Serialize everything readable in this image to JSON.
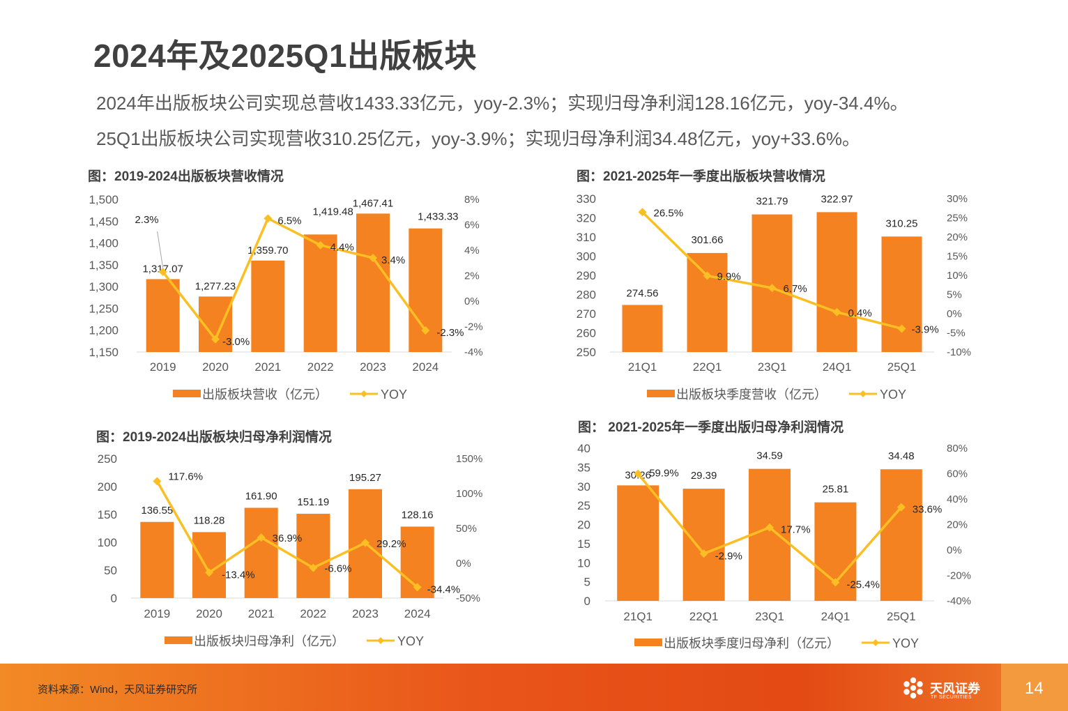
{
  "title": "2024年及2025Q1出版板块",
  "subtitle_1": "2024年出版板块公司实现总营收1433.33亿元，yoy-2.3%；实现归母净利润128.16亿元，yoy-34.4%。",
  "subtitle_2": "25Q1出版板块公司实现营收310.25亿元，yoy-3.9%；实现归母净利润34.48亿元，yoy+33.6%。",
  "colors": {
    "bar": "#f58220",
    "line": "#fbbf24",
    "axis_text": "#595959",
    "footer": "#e9551a"
  },
  "footer": {
    "source": "资料来源：Wind，天风证券研究所",
    "logo_cn": "天风证券",
    "logo_en": "TF SECURITIES",
    "page": "14"
  },
  "chart_data": [
    {
      "id": "c1",
      "type": "bar",
      "title": "图：2019-2024出版板块营收情况",
      "categories": [
        "2019",
        "2020",
        "2021",
        "2022",
        "2023",
        "2024"
      ],
      "series": [
        {
          "name": "出版板块营收（亿元）",
          "type": "bar",
          "values": [
            1317.07,
            1277.23,
            1359.7,
            1419.48,
            1467.41,
            1433.33
          ],
          "labels": [
            "1,317.07",
            "1,277.23",
            "1,359.70",
            "1,419.48",
            "1,467.41",
            "1,433.33"
          ]
        },
        {
          "name": "YOY",
          "type": "line",
          "axis": "right",
          "values": [
            2.3,
            -3.0,
            6.5,
            4.4,
            3.4,
            -2.3
          ],
          "labels": [
            "2.3%",
            "-3.0%",
            "6.5%",
            "4.4%",
            "3.4%",
            "-2.3%"
          ]
        }
      ],
      "ylim": [
        1150,
        1500
      ],
      "yticks": [
        "1,150",
        "1,200",
        "1,250",
        "1,300",
        "1,350",
        "1,400",
        "1,450",
        "1,500"
      ],
      "y2lim": [
        -4,
        8
      ],
      "y2ticks": [
        "-4%",
        "-2%",
        "0%",
        "2%",
        "4%",
        "6%",
        "8%"
      ],
      "legend": [
        "出版板块营收（亿元）",
        "YOY"
      ],
      "legend_position": "bottom"
    },
    {
      "id": "c2",
      "type": "bar",
      "title": "图：2021-2025年一季度出版板块营收情况",
      "categories": [
        "21Q1",
        "22Q1",
        "23Q1",
        "24Q1",
        "25Q1"
      ],
      "series": [
        {
          "name": "出版板块季度营收（亿元）",
          "type": "bar",
          "values": [
            274.56,
            301.66,
            321.79,
            322.97,
            310.25
          ],
          "labels": [
            "274.56",
            "301.66",
            "321.79",
            "322.97",
            "310.25"
          ]
        },
        {
          "name": "YOY",
          "type": "line",
          "axis": "right",
          "values": [
            26.5,
            9.9,
            6.7,
            0.4,
            -3.9
          ],
          "labels": [
            "26.5%",
            "9.9%",
            "6.7%",
            "0.4%",
            "-3.9%"
          ]
        }
      ],
      "ylim": [
        250,
        330
      ],
      "yticks": [
        "250",
        "260",
        "270",
        "280",
        "290",
        "300",
        "310",
        "320",
        "330"
      ],
      "y2lim": [
        -10,
        30
      ],
      "y2ticks": [
        "-10%",
        "-5%",
        "0%",
        "5%",
        "10%",
        "15%",
        "20%",
        "25%",
        "30%"
      ],
      "legend": [
        "出版板块季度营收（亿元）",
        "YOY"
      ],
      "legend_position": "bottom"
    },
    {
      "id": "c3",
      "type": "bar",
      "title": "图：2019-2024出版板块归母净利润情况",
      "categories": [
        "2019",
        "2020",
        "2021",
        "2022",
        "2023",
        "2024"
      ],
      "series": [
        {
          "name": "出版板块归母净利（亿元）",
          "type": "bar",
          "values": [
            136.55,
            118.28,
            161.9,
            151.19,
            195.27,
            128.16
          ],
          "labels": [
            "136.55",
            "118.28",
            "161.90",
            "151.19",
            "195.27",
            "128.16"
          ]
        },
        {
          "name": "YOY",
          "type": "line",
          "axis": "right",
          "values": [
            117.6,
            -13.4,
            36.9,
            -6.6,
            29.2,
            -34.4
          ],
          "labels": [
            "117.6%",
            "-13.4%",
            "36.9%",
            "-6.6%",
            "29.2%",
            "-34.4%"
          ]
        }
      ],
      "ylim": [
        0,
        250
      ],
      "yticks": [
        "0",
        "50",
        "100",
        "150",
        "200",
        "250"
      ],
      "y2lim": [
        -50,
        150
      ],
      "y2ticks": [
        "-50%",
        "0%",
        "50%",
        "100%",
        "150%"
      ],
      "legend": [
        "出版板块归母净利（亿元）",
        "YOY"
      ],
      "legend_position": "bottom"
    },
    {
      "id": "c4",
      "type": "bar",
      "title": "图： 2021-2025年一季度出版归母净利润情况",
      "categories": [
        "21Q1",
        "22Q1",
        "23Q1",
        "24Q1",
        "25Q1"
      ],
      "series": [
        {
          "name": "出版板块季度归母净利（亿元）",
          "type": "bar",
          "values": [
            30.26,
            29.39,
            34.59,
            25.81,
            34.48
          ],
          "labels": [
            "30.26",
            "29.39",
            "34.59",
            "25.81",
            "34.48"
          ]
        },
        {
          "name": "YOY",
          "type": "line",
          "axis": "right",
          "values": [
            59.9,
            -2.9,
            17.7,
            -25.4,
            33.6
          ],
          "labels": [
            "59.9%",
            "-2.9%",
            "17.7%",
            "-25.4%",
            "33.6%"
          ]
        }
      ],
      "ylim": [
        0,
        40
      ],
      "yticks": [
        "0",
        "5",
        "10",
        "15",
        "20",
        "25",
        "30",
        "35",
        "40"
      ],
      "y2lim": [
        -40,
        80
      ],
      "y2ticks": [
        "-40%",
        "-20%",
        "0%",
        "20%",
        "40%",
        "60%",
        "80%"
      ],
      "legend": [
        "出版板块季度归母净利（亿元）",
        "YOY"
      ],
      "legend_position": "bottom"
    }
  ]
}
